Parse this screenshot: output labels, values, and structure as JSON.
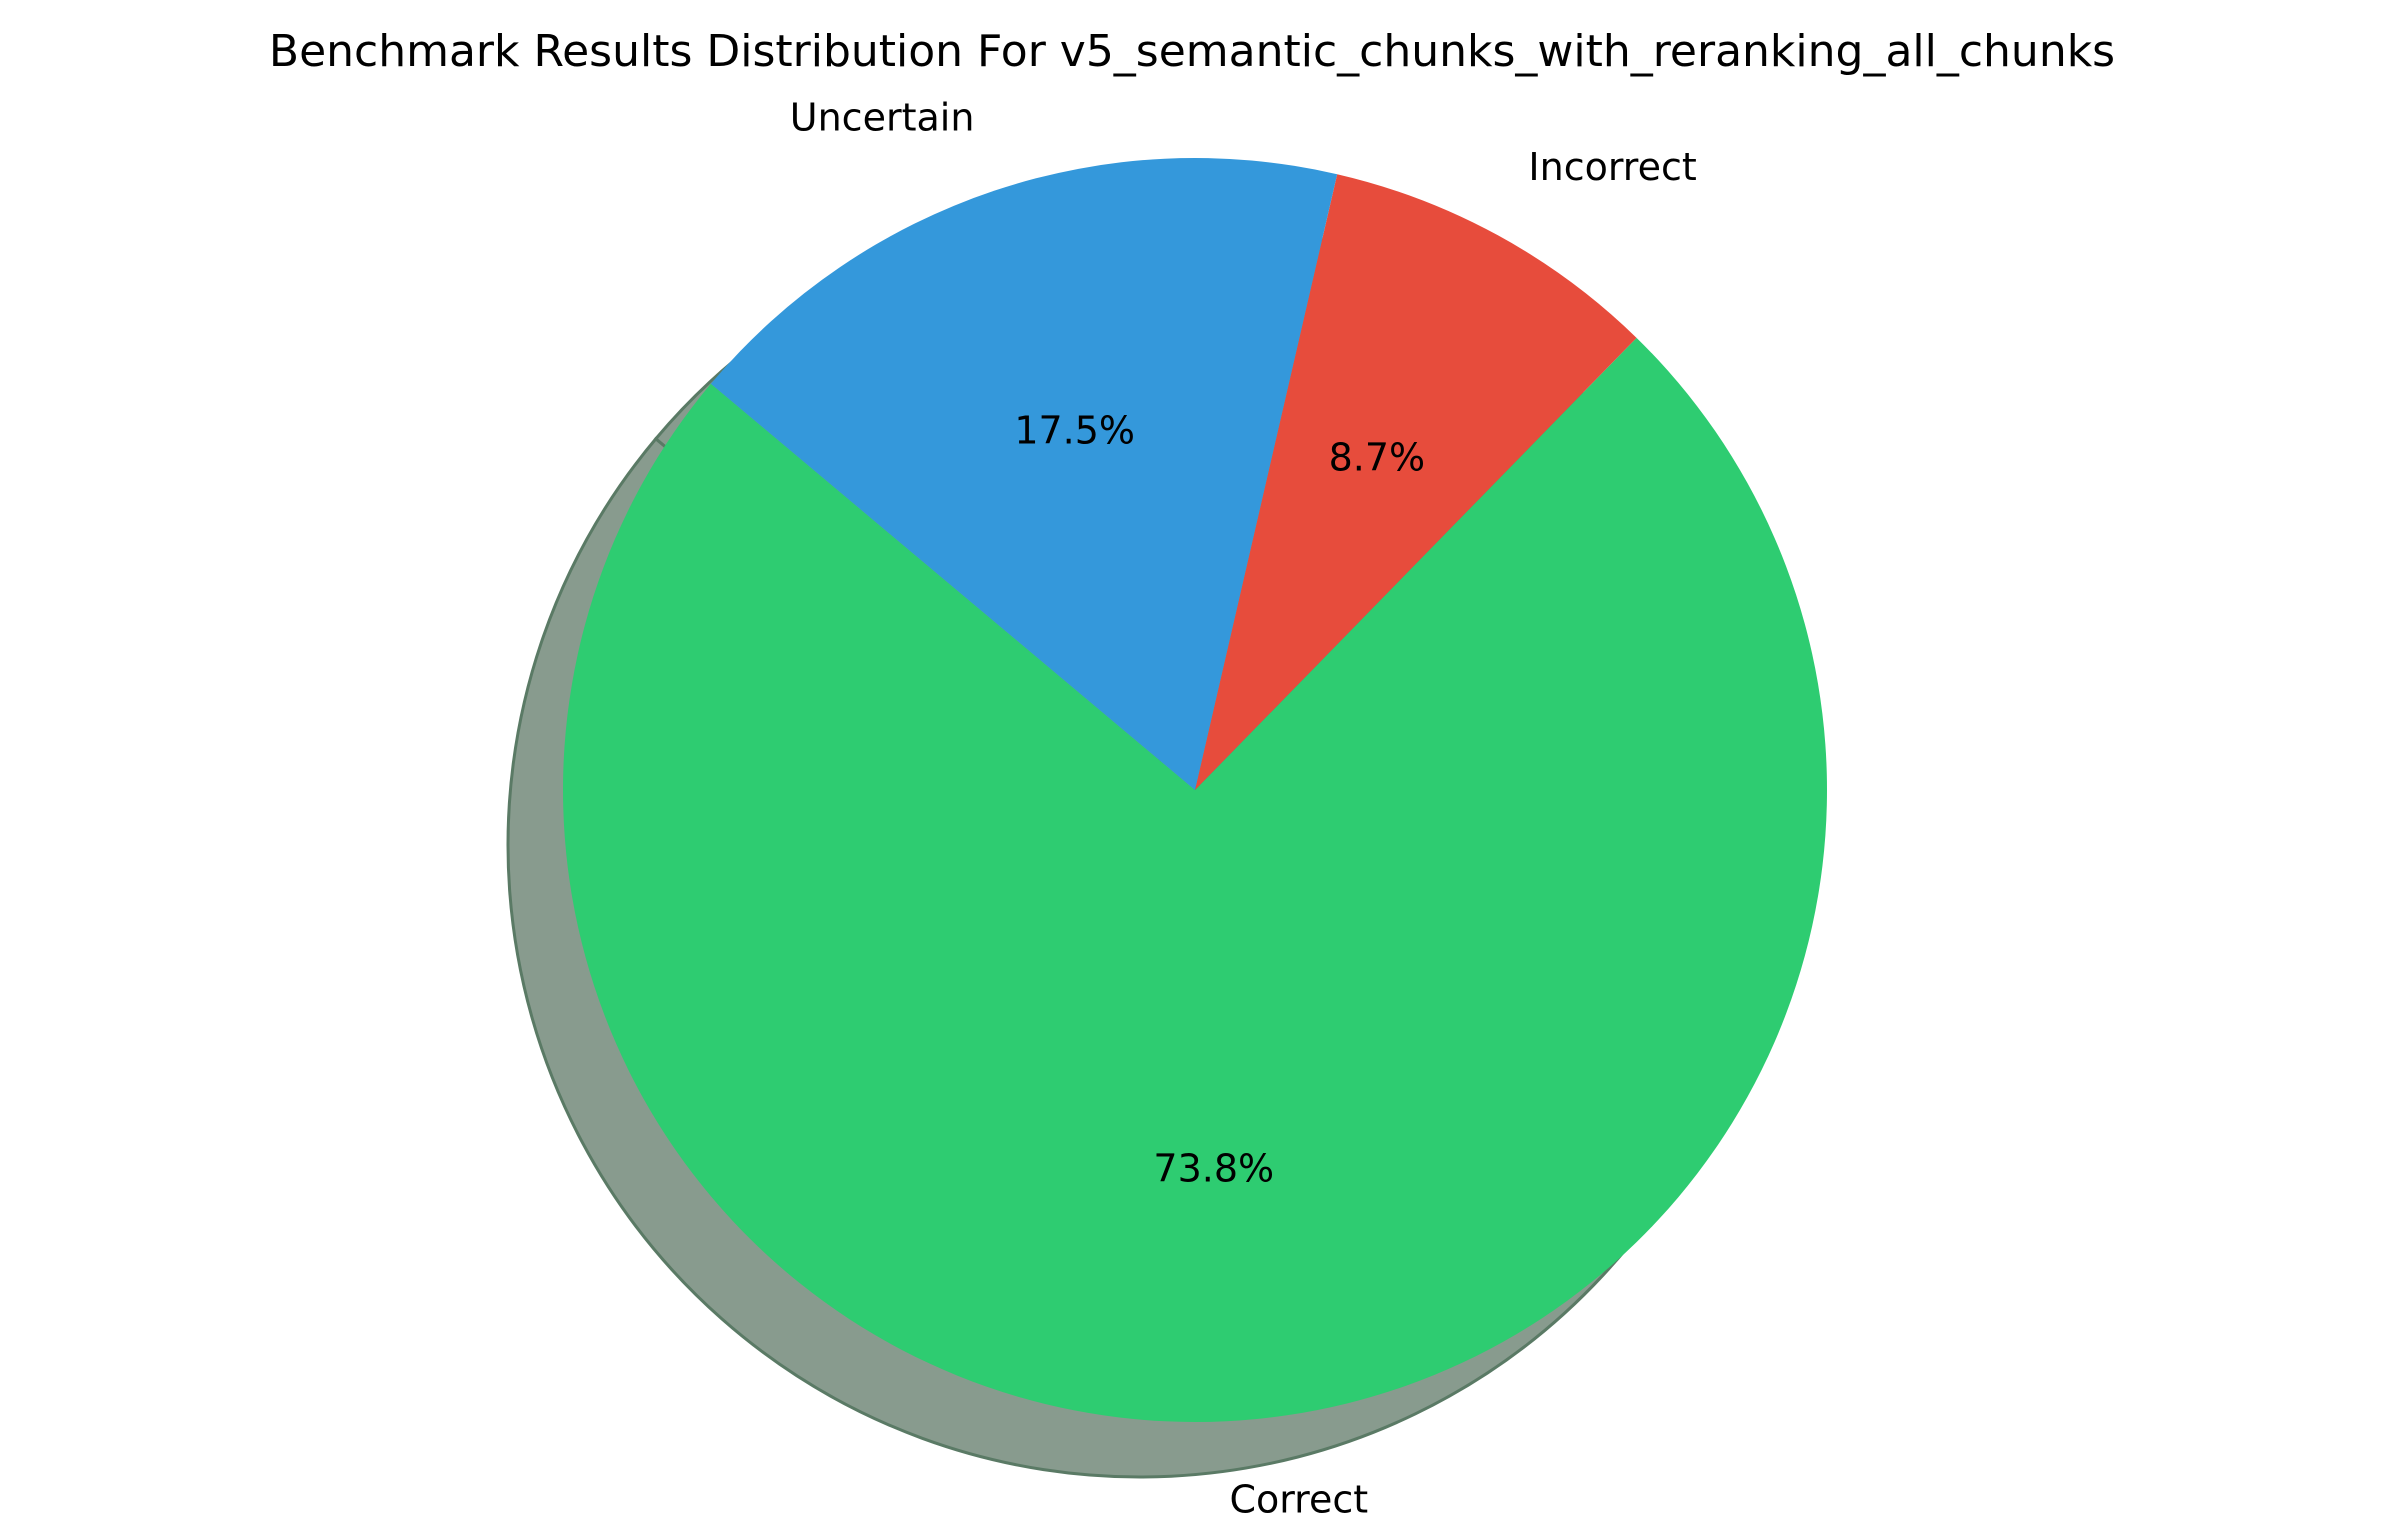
{
  "chart_data": {
    "type": "pie",
    "title": "Benchmark Results Distribution For v5_semantic_chunks_with_reranking_all_chunks",
    "slices": [
      {
        "label": "Correct",
        "percent": 73.8,
        "pct_label": "73.8%",
        "color": "#2ecc71"
      },
      {
        "label": "Incorrect",
        "percent": 8.7,
        "pct_label": "8.7%",
        "color": "#e74c3c"
      },
      {
        "label": "Uncertain",
        "percent": 17.5,
        "pct_label": "17.5%",
        "color": "#3498db"
      }
    ],
    "shadow": true,
    "shadow_color": "#889b8e",
    "legend": "none",
    "start_angle": 140,
    "direction": "counterclockwise"
  }
}
